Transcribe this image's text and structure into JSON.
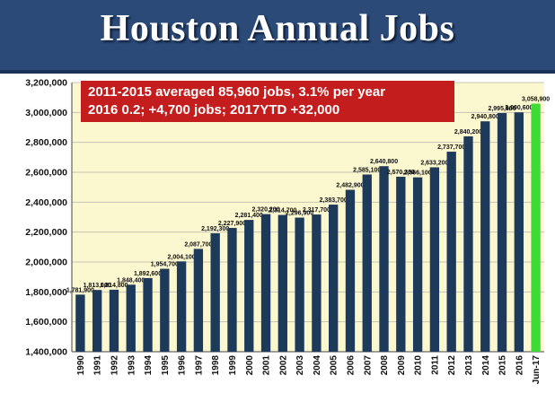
{
  "chart_data": {
    "type": "bar",
    "title": "Houston Annual Jobs",
    "annotation": [
      "2011-2015 averaged 85,960 jobs, 3.1% per year",
      "2016 0.2; +4,700 jobs; 2017YTD +32,000"
    ],
    "categories": [
      "1990",
      "1991",
      "1992",
      "1993",
      "1994",
      "1995",
      "1996",
      "1997",
      "1998",
      "1999",
      "2000",
      "2001",
      "2002",
      "2003",
      "2004",
      "2005",
      "2006",
      "2007",
      "2008",
      "2009",
      "2010",
      "2011",
      "2012",
      "2013",
      "2014",
      "2015",
      "2016",
      "Jun-17"
    ],
    "values": [
      1781900,
      1813000,
      1814800,
      1848400,
      1892600,
      1954700,
      2004100,
      2087700,
      2192300,
      2227900,
      2281400,
      2320200,
      2314700,
      2296900,
      2317700,
      2383700,
      2482900,
      2585100,
      2640800,
      2570300,
      2566100,
      2633200,
      2737700,
      2840200,
      2940800,
      2995900,
      3000600,
      3058900
    ],
    "value_labels": [
      "1,781,900",
      "1,813,000",
      "1,814,800",
      "1,848,400",
      "1,892,600",
      "1,954,700",
      "2,004,100",
      "2,087,700",
      "2,192,300",
      "2,227,900",
      "2,281,400",
      "2,320,200",
      "2,314,700",
      "2,296,900",
      "2,317,700",
      "2,383,700",
      "2,482,900",
      "2,585,100",
      "2,640,800",
      "2,570,300",
      "2,566,100",
      "2,633,200",
      "2,737,700",
      "2,840,200",
      "2,940,800",
      "2,995,900",
      "3,000,600",
      "3,058,900"
    ],
    "ylim": [
      1400000,
      3200000
    ],
    "yticks": [
      1400000,
      1600000,
      1800000,
      2000000,
      2200000,
      2400000,
      2600000,
      2800000,
      3000000,
      3200000
    ],
    "ytick_labels": [
      "1,400,000",
      "1,600,000",
      "1,800,000",
      "2,000,000",
      "2,200,000",
      "2,400,000",
      "2,600,000",
      "2,800,000",
      "3,000,000",
      "3,200,000"
    ],
    "grid": true,
    "colors": {
      "bar": "#1e3a5a",
      "highlight_bar": "#3ddc34",
      "plot_background": "#fbf7cf",
      "gridline": "#c8c6b4",
      "header": "#2b4a78",
      "annotation_box": "#c31d1d"
    },
    "highlight_index": 27
  }
}
